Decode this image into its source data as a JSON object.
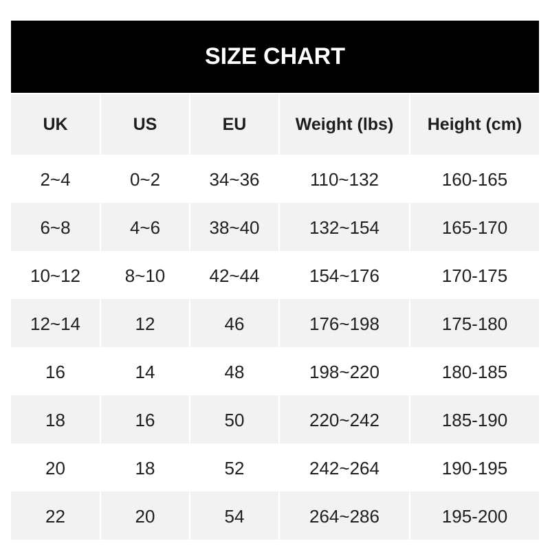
{
  "title": "SIZE CHART",
  "columns": [
    "UK",
    "US",
    "EU",
    "Weight (lbs)",
    "Height (cm)"
  ],
  "rows": [
    [
      "2~4",
      "0~2",
      "34~36",
      "110~132",
      "160-165"
    ],
    [
      "6~8",
      "4~6",
      "38~40",
      "132~154",
      "165-170"
    ],
    [
      "10~12",
      "8~10",
      "42~44",
      "154~176",
      "170-175"
    ],
    [
      "12~14",
      "12",
      "46",
      "176~198",
      "175-180"
    ],
    [
      "16",
      "14",
      "48",
      "198~220",
      "180-185"
    ],
    [
      "18",
      "16",
      "50",
      "220~242",
      "185-190"
    ],
    [
      "20",
      "18",
      "52",
      "242~264",
      "190-195"
    ],
    [
      "22",
      "20",
      "54",
      "264~286",
      "195-200"
    ]
  ],
  "colors": {
    "header_bg": "#000000",
    "stripe": "#f2f2f2",
    "text": "#1e1e1e"
  }
}
